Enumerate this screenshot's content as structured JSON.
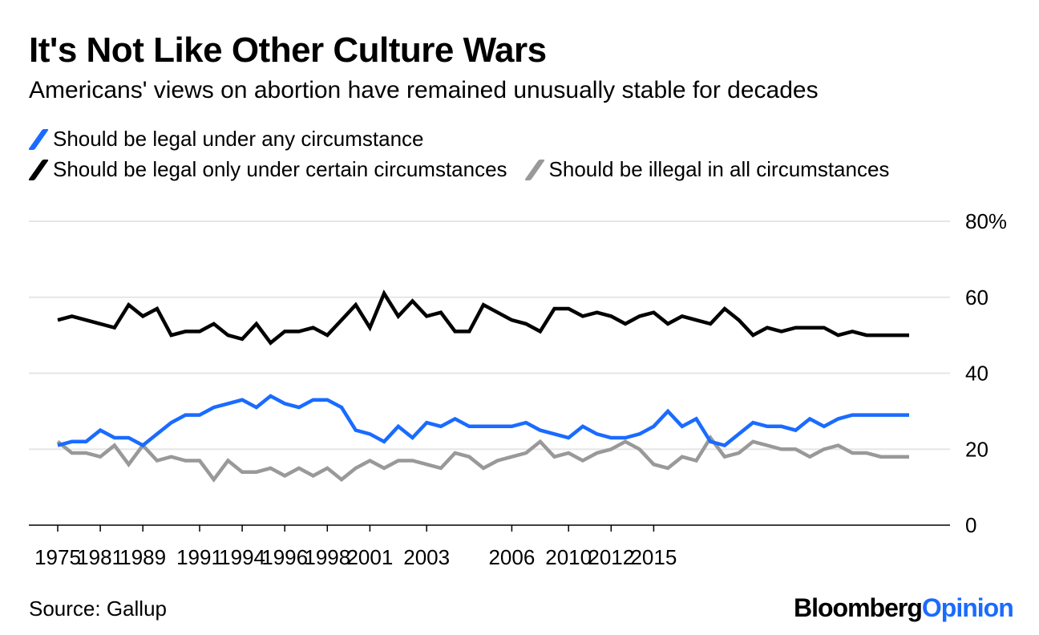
{
  "title": "It's Not Like Other Culture Wars",
  "subtitle": "Americans' views on abortion have remained unusually stable for decades",
  "source": "Source: Gallup",
  "logo": {
    "part1": "Bloomberg",
    "part2": "Opinion"
  },
  "colors": {
    "any": "#1a6bff",
    "certain": "#000000",
    "illegal": "#999999",
    "grid": "#e6e6e6"
  },
  "chart_data": {
    "type": "line",
    "title": "It's Not Like Other Culture Wars",
    "xlabel": "",
    "ylabel": "",
    "ylim": [
      0,
      80
    ],
    "y_ticks": [
      0,
      20,
      40,
      60,
      80
    ],
    "y_tick_labels": [
      "0",
      "20",
      "40",
      "60",
      "80%"
    ],
    "x_tick_labels": [
      {
        "label": "1975",
        "index": 0
      },
      {
        "label": "1981",
        "index": 3
      },
      {
        "label": "1989",
        "index": 6
      },
      {
        "label": "1991",
        "index": 10
      },
      {
        "label": "1994",
        "index": 13
      },
      {
        "label": "1996",
        "index": 16
      },
      {
        "label": "1998",
        "index": 19
      },
      {
        "label": "2001",
        "index": 22
      },
      {
        "label": "2003",
        "index": 26
      },
      {
        "label": "2006",
        "index": 32
      },
      {
        "label": "2010",
        "index": 36
      },
      {
        "label": "2012",
        "index": 39
      },
      {
        "label": "2015",
        "index": 42
      }
    ],
    "series": [
      {
        "name": "Should be legal under any circumstance",
        "key": "any",
        "values": [
          21,
          22,
          22,
          25,
          23,
          23,
          21,
          24,
          27,
          29,
          29,
          31,
          32,
          33,
          31,
          34,
          32,
          31,
          33,
          33,
          31,
          25,
          24,
          22,
          26,
          23,
          27,
          26,
          28,
          26,
          26,
          26,
          26,
          27,
          25,
          24,
          23,
          26,
          24,
          23,
          23,
          24,
          26,
          30,
          26,
          28,
          22,
          21,
          24,
          27,
          26,
          26,
          25,
          28,
          26,
          28,
          29,
          29,
          29,
          29,
          29
        ]
      },
      {
        "name": "Should be legal only under certain circumstances",
        "key": "certain",
        "values": [
          54,
          55,
          54,
          53,
          52,
          58,
          55,
          57,
          50,
          51,
          51,
          53,
          50,
          49,
          53,
          48,
          51,
          51,
          52,
          50,
          54,
          58,
          52,
          61,
          55,
          59,
          55,
          56,
          51,
          51,
          58,
          56,
          54,
          53,
          51,
          57,
          57,
          55,
          56,
          55,
          53,
          55,
          56,
          53,
          55,
          54,
          53,
          57,
          54,
          50,
          52,
          51,
          52,
          52,
          52,
          50,
          51,
          50,
          50,
          50,
          50
        ]
      },
      {
        "name": "Should be illegal in all circumstances",
        "key": "illegal",
        "values": [
          22,
          19,
          19,
          18,
          21,
          16,
          21,
          17,
          18,
          17,
          17,
          12,
          17,
          14,
          14,
          15,
          13,
          15,
          13,
          15,
          12,
          15,
          17,
          15,
          17,
          17,
          16,
          15,
          19,
          18,
          15,
          17,
          18,
          19,
          22,
          18,
          19,
          17,
          19,
          20,
          22,
          20,
          16,
          15,
          18,
          17,
          23,
          18,
          19,
          22,
          21,
          20,
          20,
          18,
          20,
          21,
          19,
          19,
          18,
          18,
          18
        ]
      }
    ]
  }
}
